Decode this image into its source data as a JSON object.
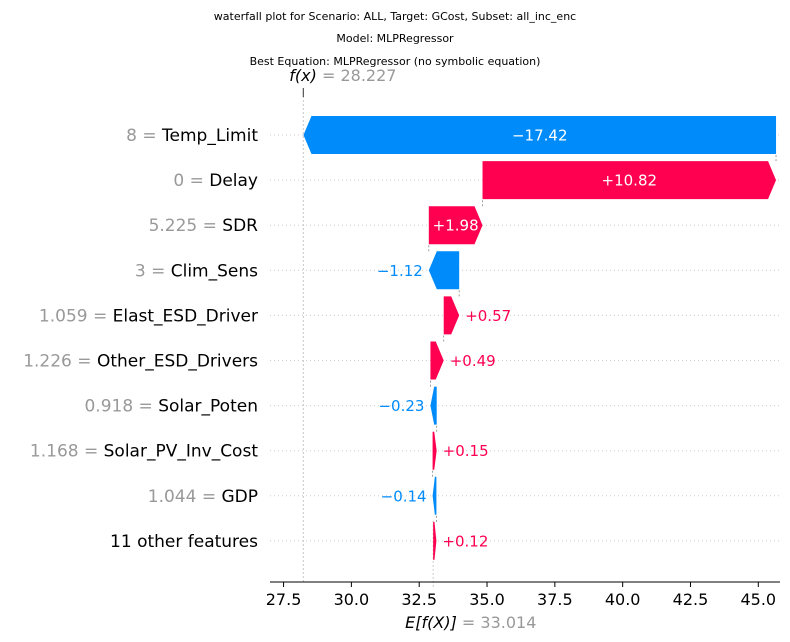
{
  "titles": [
    "waterfall plot for Scenario: ALL, Target: GCost, Subset: all_inc_enc",
    "Model: MLPRegressor",
    "Best Equation: MLPRegressor (no symbolic equation)"
  ],
  "chart_data": {
    "type": "waterfall",
    "fx_label": "f(x)",
    "fx_value": "28.227",
    "ex_label": "E[f(X)]",
    "ex_value": "33.014",
    "base_value": 33.014,
    "final_value": 28.227,
    "xlim": [
      27.0,
      45.8
    ],
    "xticks": [
      "27.5",
      "30.0",
      "32.5",
      "35.0",
      "37.5",
      "40.0",
      "42.5",
      "45.0"
    ],
    "colors": {
      "positive": "#ff0051",
      "negative": "#008bfb",
      "muted": "#999999"
    },
    "features": [
      {
        "value": "8",
        "name": "Temp_Limit",
        "shap": -17.42,
        "label": "−17.42"
      },
      {
        "value": "0",
        "name": "Delay",
        "shap": 10.82,
        "label": "+10.82"
      },
      {
        "value": "5.225",
        "name": "SDR",
        "shap": 1.98,
        "label": "+1.98"
      },
      {
        "value": "3",
        "name": "Clim_Sens",
        "shap": -1.12,
        "label": "−1.12"
      },
      {
        "value": "1.059",
        "name": "Elast_ESD_Driver",
        "shap": 0.57,
        "label": "+0.57"
      },
      {
        "value": "1.226",
        "name": "Other_ESD_Drivers",
        "shap": 0.49,
        "label": "+0.49"
      },
      {
        "value": "0.918",
        "name": "Solar_Poten",
        "shap": -0.23,
        "label": "−0.23"
      },
      {
        "value": "1.168",
        "name": "Solar_PV_Inv_Cost",
        "shap": 0.15,
        "label": "+0.15"
      },
      {
        "value": "1.044",
        "name": "GDP",
        "shap": -0.14,
        "label": "−0.14"
      },
      {
        "value": "",
        "name": "11 other features",
        "shap": 0.12,
        "label": "+0.12"
      }
    ]
  }
}
